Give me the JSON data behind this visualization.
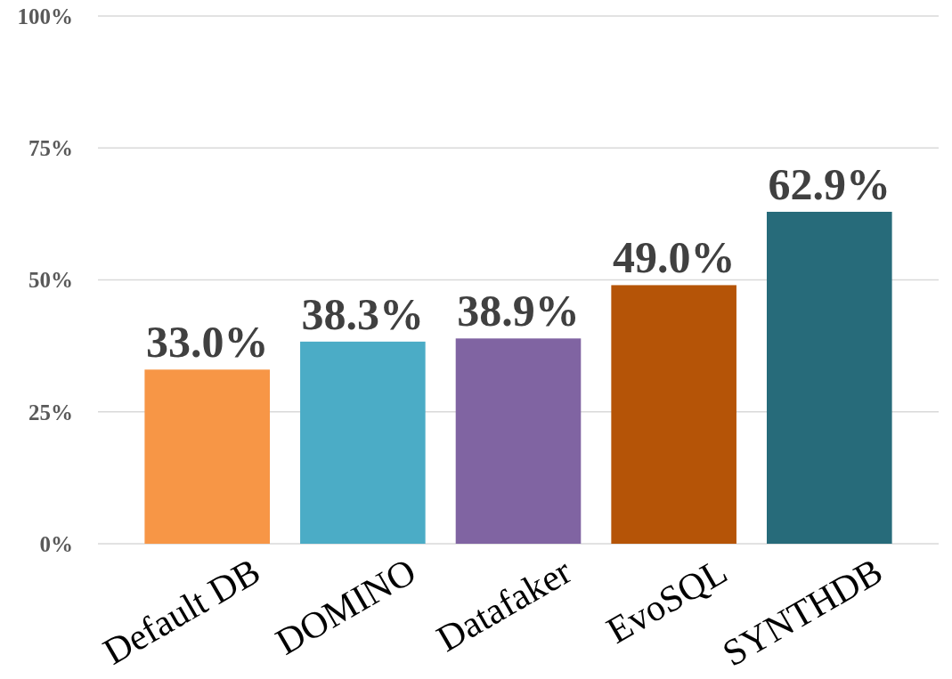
{
  "chart_data": {
    "type": "bar",
    "categories": [
      "Default DB",
      "DOMINO",
      "Datafaker",
      "EvoSQL",
      "SYNTHDB"
    ],
    "values": [
      33.0,
      38.3,
      38.9,
      49.0,
      62.9
    ],
    "colors": [
      "#f79646",
      "#4bacc6",
      "#8064a2",
      "#b55407",
      "#276b7a"
    ],
    "value_labels": [
      "33.0%",
      "38.3%",
      "38.9%",
      "49.0%",
      "62.9%"
    ],
    "ylim": [
      0,
      100
    ],
    "yticks": [
      {
        "value": 0,
        "label": "0%"
      },
      {
        "value": 25,
        "label": "25%"
      },
      {
        "value": 50,
        "label": "50%"
      },
      {
        "value": 75,
        "label": "75%"
      },
      {
        "value": 100,
        "label": "100%"
      }
    ],
    "grid": "y"
  }
}
